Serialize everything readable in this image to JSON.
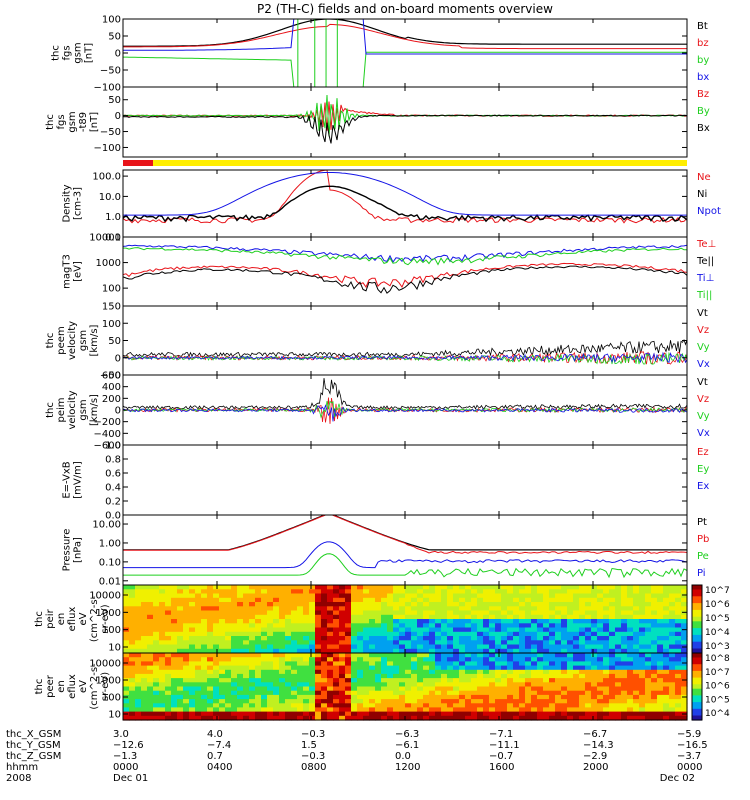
{
  "title": "P2 (TH-C) fields and on-board moments overview",
  "colors": {
    "black": "#000000",
    "red": "#e8141a",
    "green": "#1ecf1e",
    "blue": "#1414e6",
    "yellow": "#ffee00",
    "darkred": "#b01010"
  },
  "chart_data": [
    {
      "id": "fgs",
      "type": "line",
      "ylabel": [
        "thc",
        "fgs",
        "gsm",
        "[nT]"
      ],
      "ylim": [
        -100,
        100
      ],
      "ticks": [
        "100",
        "50",
        "0",
        "−50",
        "−100"
      ],
      "series": [
        {
          "name": "Bt",
          "color": "black"
        },
        {
          "name": "bz",
          "color": "red"
        },
        {
          "name": "by",
          "color": "green"
        },
        {
          "name": "bx",
          "color": "blue"
        }
      ]
    },
    {
      "id": "fgs_ms",
      "type": "line",
      "ylabel": [
        "thc",
        "fgs",
        "gsm",
        "-t89",
        "[nT]"
      ],
      "ylim": [
        -130,
        90
      ],
      "ticks": [
        "50",
        "0",
        "−50",
        "−100"
      ],
      "series": [
        {
          "name": "Bz",
          "color": "red"
        },
        {
          "name": "By",
          "color": "green"
        },
        {
          "name": "Bx",
          "color": "black"
        }
      ]
    },
    {
      "id": "density",
      "type": "line",
      "scale": "log",
      "ylabel": [
        "Density",
        "[cm-3]"
      ],
      "ylim": [
        0.1,
        200
      ],
      "ticks": [
        "100.0",
        "10.0",
        "1.0",
        "0.1"
      ],
      "series": [
        {
          "name": "Ne",
          "color": "red"
        },
        {
          "name": "Ni",
          "color": "black"
        },
        {
          "name": "Npot",
          "color": "blue"
        }
      ]
    },
    {
      "id": "temp",
      "type": "line",
      "scale": "log",
      "ylabel": [
        "magT3",
        "[eV]"
      ],
      "ylim": [
        20,
        10000
      ],
      "ticks": [
        "10000",
        "1000",
        "100"
      ],
      "series": [
        {
          "name": "Te⊥",
          "color": "red"
        },
        {
          "name": "Te||",
          "color": "black"
        },
        {
          "name": "Ti⊥",
          "color": "blue"
        },
        {
          "name": "Ti||",
          "color": "green"
        }
      ]
    },
    {
      "id": "vel_e",
      "type": "line",
      "ylabel": [
        "thc",
        "peem",
        "velocity",
        "gsm",
        "[km/s]"
      ],
      "ylim": [
        -50,
        150
      ],
      "ticks": [
        "150",
        "100",
        "50",
        "0",
        "−50"
      ],
      "series": [
        {
          "name": "Vt",
          "color": "black"
        },
        {
          "name": "Vz",
          "color": "red"
        },
        {
          "name": "Vy",
          "color": "green"
        },
        {
          "name": "Vx",
          "color": "blue"
        }
      ]
    },
    {
      "id": "vel_i",
      "type": "line",
      "ylabel": [
        "thc",
        "peim",
        "velocity",
        "gsm",
        "[km/s]"
      ],
      "ylim": [
        -600,
        600
      ],
      "ticks": [
        "600",
        "400",
        "200",
        "0",
        "−200",
        "−400",
        "−600"
      ],
      "series": [
        {
          "name": "Vt",
          "color": "black"
        },
        {
          "name": "Vz",
          "color": "red"
        },
        {
          "name": "Vy",
          "color": "green"
        },
        {
          "name": "Vx",
          "color": "blue"
        }
      ]
    },
    {
      "id": "efield",
      "type": "line",
      "ylabel": [
        "E=-VxB",
        "[mV/m]"
      ],
      "ylim": [
        0,
        1
      ],
      "ticks": [
        "1.0",
        "0.8",
        "0.6",
        "0.4",
        "0.2",
        "0.0"
      ],
      "series": [
        {
          "name": "Ez",
          "color": "red"
        },
        {
          "name": "Ey",
          "color": "green"
        },
        {
          "name": "Ex",
          "color": "blue"
        }
      ]
    },
    {
      "id": "pressure",
      "type": "line",
      "scale": "log",
      "ylabel": [
        "Pressure",
        "[nPa]"
      ],
      "ylim": [
        0.006,
        30
      ],
      "ticks": [
        "10.00",
        "1.00",
        "0.10",
        "0.01"
      ],
      "series": [
        {
          "name": "Pt",
          "color": "black"
        },
        {
          "name": "Pb",
          "color": "red"
        },
        {
          "name": "Pe",
          "color": "green"
        },
        {
          "name": "Pi",
          "color": "blue"
        }
      ]
    },
    {
      "id": "spec_i",
      "type": "heatmap",
      "ylabel": [
        "thc",
        "peir",
        "en",
        "eflux",
        "eV",
        "(cm^2-s-",
        "sr-eV)"
      ],
      "yticks": [
        "10000",
        "1000",
        "100",
        "10"
      ],
      "colorbar": [
        "10^7",
        "10^6",
        "10^5",
        "10^4",
        "10^3"
      ]
    },
    {
      "id": "spec_e",
      "type": "heatmap",
      "ylabel": [
        "thc",
        "peer",
        "en",
        "eflux",
        "eV",
        "(cm^2-s-",
        "sr-eV)"
      ],
      "yticks": [
        "10000",
        "1000",
        "100",
        "10"
      ],
      "colorbar": [
        "10^8",
        "10^7",
        "10^6",
        "10^5",
        "10^4"
      ]
    }
  ],
  "xaxis": {
    "row_labels": [
      "thc_X_GSM",
      "thc_Y_GSM",
      "thc_Z_GSM",
      "hhmm",
      "2008"
    ],
    "ticks": [
      {
        "x": "3.0",
        "y": "−12.6",
        "z": "−1.3",
        "hhmm": "0000",
        "date": "Dec 01"
      },
      {
        "x": "4.0",
        "y": "−7.4",
        "z": "0.7",
        "hhmm": "0400",
        "date": ""
      },
      {
        "x": "−0.3",
        "y": "1.5",
        "z": "−0.3",
        "hhmm": "0800",
        "date": ""
      },
      {
        "x": "−6.3",
        "y": "−6.1",
        "z": "0.0",
        "hhmm": "1200",
        "date": ""
      },
      {
        "x": "−7.1",
        "y": "−11.1",
        "z": "−0.7",
        "hhmm": "1600",
        "date": ""
      },
      {
        "x": "−6.7",
        "y": "−14.3",
        "z": "−2.9",
        "hhmm": "2000",
        "date": ""
      },
      {
        "x": "−5.9",
        "y": "−16.5",
        "z": "−3.7",
        "hhmm": "0000",
        "date": "Dec 02"
      }
    ]
  }
}
